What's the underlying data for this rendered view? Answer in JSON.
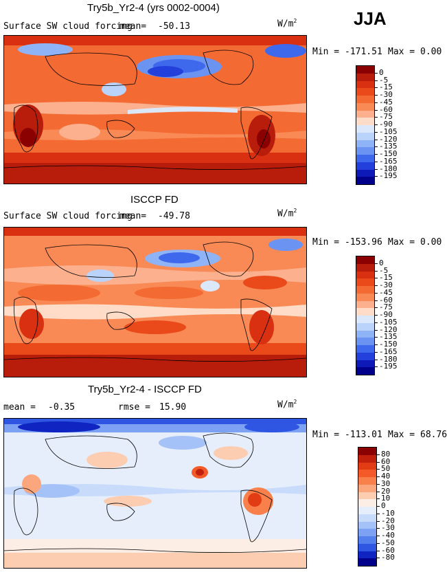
{
  "season": "JJA",
  "panels": [
    {
      "title": "Try5b_Yr2-4 (yrs 0002-0004)",
      "field": "Surface SW cloud forcing",
      "mean_label": "mean=",
      "mean": "-50.13",
      "units": "W/m",
      "units_exp": "2",
      "min_label": "Min =",
      "min": "-171.51",
      "max_label": "Max =",
      "max": "0.00",
      "levels": [
        "0",
        "-5",
        "-15",
        "-30",
        "-45",
        "-60",
        "-75",
        "-90",
        "-105",
        "-120",
        "-135",
        "-150",
        "-165",
        "-180",
        "-195"
      ],
      "colors": [
        "#8b0000",
        "#b81d0b",
        "#d83010",
        "#ea4a1a",
        "#f46a33",
        "#f98a55",
        "#fcb08e",
        "#fedcc8",
        "#dbe8fb",
        "#b9d3fb",
        "#8fb3f7",
        "#6a93f2",
        "#3f69ec",
        "#2440dc",
        "#0d1ab8",
        "#00008b"
      ]
    },
    {
      "title": "ISCCP FD",
      "field": "Surface SW cloud forcing",
      "mean_label": "mean=",
      "mean": "-49.78",
      "units": "W/m",
      "units_exp": "2",
      "min_label": "Min =",
      "min": "-153.96",
      "max_label": "Max =",
      "max": "0.00",
      "levels": [
        "0",
        "-5",
        "-15",
        "-30",
        "-45",
        "-60",
        "-75",
        "-90",
        "-105",
        "-120",
        "-135",
        "-150",
        "-165",
        "-180",
        "-195"
      ],
      "colors": [
        "#8b0000",
        "#b81d0b",
        "#d83010",
        "#ea4a1a",
        "#f46a33",
        "#f98a55",
        "#fcb08e",
        "#fedcc8",
        "#dbe8fb",
        "#b9d3fb",
        "#8fb3f7",
        "#6a93f2",
        "#3f69ec",
        "#2440dc",
        "#0d1ab8",
        "#00008b"
      ]
    },
    {
      "title": "Try5b_Yr2-4 - ISCCP FD",
      "field": "",
      "mean_label": "mean =",
      "mean": "-0.35",
      "rmse_label": "rmse =",
      "rmse": "15.90",
      "units": "W/m",
      "units_exp": "2",
      "min_label": "Min =",
      "min": "-113.01",
      "max_label": "Max =",
      "max": "68.76",
      "levels": [
        "80",
        "60",
        "50",
        "40",
        "30",
        "20",
        "10",
        "0",
        "-10",
        "-20",
        "-30",
        "-40",
        "-50",
        "-60",
        "-80"
      ],
      "colors": [
        "#8b0000",
        "#c0200c",
        "#e23c15",
        "#f45a28",
        "#f9804a",
        "#fca67d",
        "#fdcdb2",
        "#fdeee5",
        "#e6eefc",
        "#c9dbfb",
        "#a5c2f8",
        "#7ea2f3",
        "#5480ee",
        "#2f56e2",
        "#0f24c0",
        "#00008b"
      ]
    }
  ]
}
